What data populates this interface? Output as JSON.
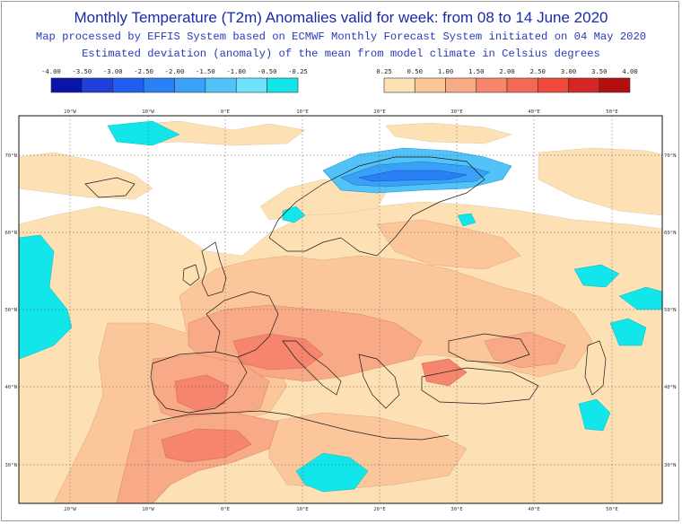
{
  "header": {
    "title": "Monthly Temperature (T2m) Anomalies valid for week: from 08 to 14 June 2020",
    "subtitle_line1": "Map processed by EFFIS System based on ECMWF Monthly Forecast System initiated on 04 May 2020",
    "subtitle_line2": "Estimated deviation (anomaly) of the mean from model climate in Celsius degrees"
  },
  "legend": {
    "cold": {
      "ticks": [
        "-4.00",
        "-3.50",
        "-3.00",
        "-2.50",
        "-2.00",
        "-1.50",
        "-1.00",
        "-0.50",
        "-0.25"
      ],
      "colors": [
        "#0a14a8",
        "#1f3fd8",
        "#1f5ef0",
        "#2a80f5",
        "#3aa2f6",
        "#52c3f8",
        "#6ee2fb",
        "#12e6ea"
      ]
    },
    "warm": {
      "ticks": [
        "0.25",
        "0.50",
        "1.00",
        "1.50",
        "2.00",
        "2.50",
        "3.00",
        "3.50",
        "4.00"
      ],
      "colors": [
        "#fde0b4",
        "#fbc79a",
        "#f8a985",
        "#f5856c",
        "#f26a56",
        "#f04a3c",
        "#d42624",
        "#b20f10"
      ]
    }
  },
  "map": {
    "top_lon_labels": [
      "20°W",
      "10°W",
      "0°E",
      "10°E",
      "20°E",
      "30°E",
      "40°E",
      "50°E"
    ],
    "bottom_lon_labels": [
      "20°W",
      "10°W",
      "0°E",
      "10°E",
      "20°E",
      "30°E",
      "40°E",
      "50°E"
    ],
    "left_lat_labels": [
      "70°N",
      "60°N",
      "50°N",
      "40°N",
      "30°N"
    ],
    "right_lat_labels": [
      "70°N",
      "60°N",
      "50°N",
      "40°N",
      "30°N"
    ]
  }
}
